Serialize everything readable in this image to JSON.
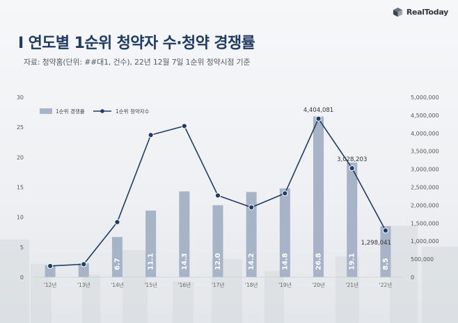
{
  "brand": {
    "name": "RealToday",
    "logo_icon": "cube-icon"
  },
  "header": {
    "title": "I 연도별 1순위 청약자 수·청약 경쟁률",
    "subtitle": "자료: 청약홈(단위: ##대1, 건수), 22년 12월 7일 1순위 청약시점 기준"
  },
  "chart_data": {
    "type": "bar",
    "categories": [
      "'12년",
      "'13년",
      "'14년",
      "'15년",
      "'16년",
      "'17년",
      "'18년",
      "'19년",
      "'20년",
      "'21년",
      "'22년"
    ],
    "series": [
      {
        "name": "1순위 경쟁률",
        "type": "bar",
        "axis": "left",
        "values": [
          2.0,
          2.3,
          6.7,
          11.1,
          14.3,
          12.0,
          14.2,
          14.8,
          26.8,
          19.1,
          8.5
        ],
        "labels": [
          "",
          "",
          "6.7",
          "11.1",
          "14.3",
          "12.0",
          "14.2",
          "14.8",
          "26.8",
          "19.1",
          "8.5"
        ],
        "color": "#a7b4c8"
      },
      {
        "name": "1순위 청약자수",
        "type": "line",
        "axis": "right",
        "values": [
          310000,
          360000,
          1530000,
          3950000,
          4200000,
          2270000,
          1940000,
          2330000,
          4404081,
          3028203,
          1298041
        ],
        "labels": [
          "",
          "",
          "",
          "",
          "",
          "",
          "",
          "",
          "4,404,081",
          "3,028,203",
          "1,298,041"
        ],
        "color": "#1f3a63"
      }
    ],
    "y_left": {
      "range": [
        0,
        30
      ],
      "ticks": [
        "0",
        "5",
        "10",
        "15",
        "20",
        "25",
        "30"
      ]
    },
    "y_right": {
      "range": [
        0,
        5000000
      ],
      "ticks": [
        "0",
        "500,000",
        "1,000,000",
        "1,500,000",
        "2,000,000",
        "2,500,000",
        "3,000,000",
        "3,500,000",
        "4,000,000",
        "4,500,000",
        "5,000,000"
      ]
    },
    "legend": "top-left",
    "grid": false
  }
}
